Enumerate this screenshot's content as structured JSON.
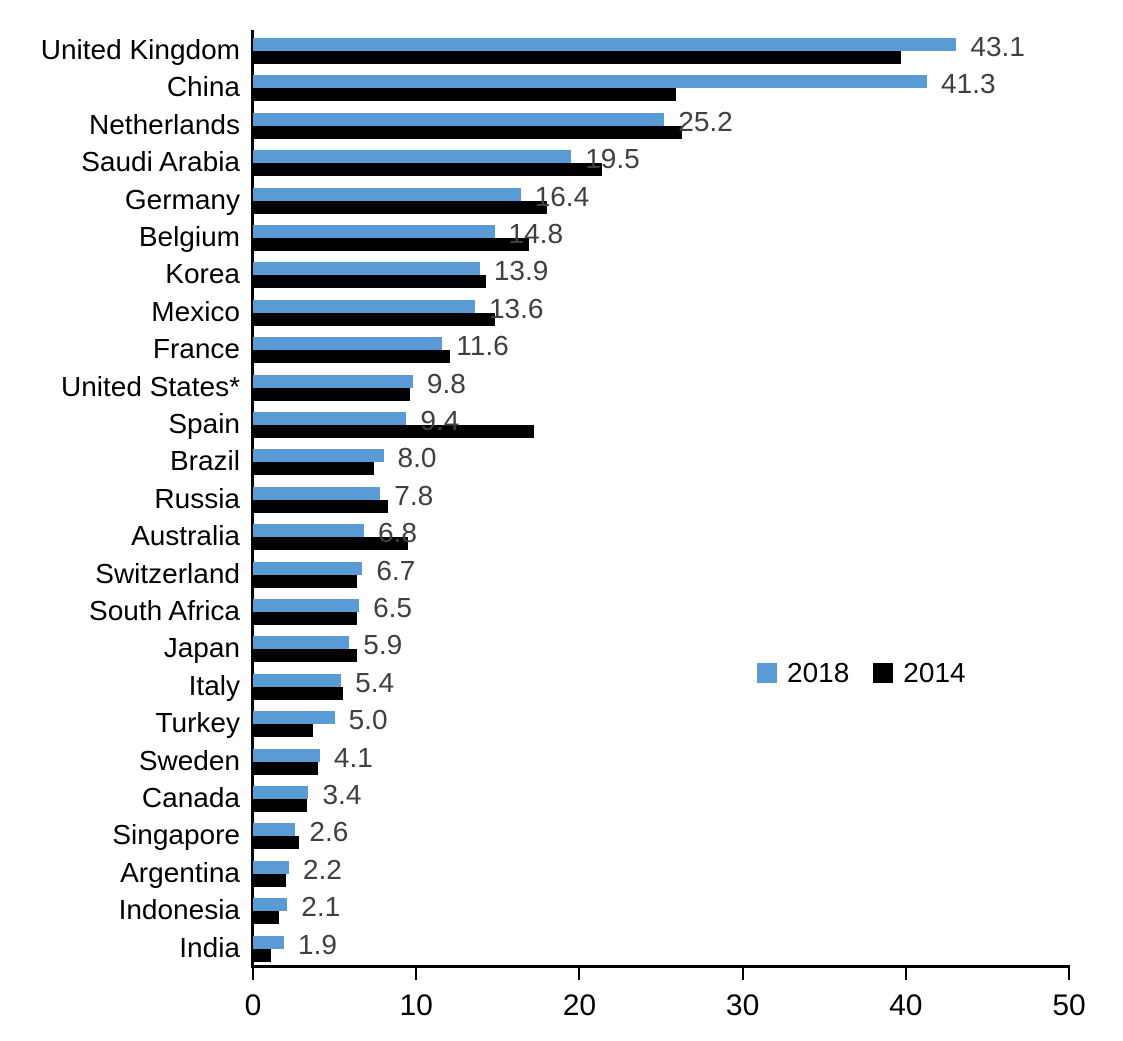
{
  "chart_data": {
    "type": "bar",
    "orientation": "horizontal",
    "title": "",
    "xlabel": "",
    "ylabel": "",
    "xlim": [
      0,
      50
    ],
    "xticks": [
      "0",
      "10",
      "20",
      "30",
      "40",
      "50"
    ],
    "grid": false,
    "legend_position": "middle-right",
    "categories": [
      "United Kingdom",
      "China",
      "Netherlands",
      "Saudi Arabia",
      "Germany",
      "Belgium",
      "Korea",
      "Mexico",
      "France",
      "United States*",
      "Spain",
      "Brazil",
      "Russia",
      "Australia",
      "Switzerland",
      "South Africa",
      "Japan",
      "Italy",
      "Turkey",
      "Sweden",
      "Canada",
      "Singapore",
      "Argentina",
      "Indonesia",
      "India"
    ],
    "series": [
      {
        "name": "2018",
        "color": "#5B9BD5",
        "values": [
          43.1,
          41.3,
          25.2,
          19.5,
          16.4,
          14.8,
          13.9,
          13.6,
          11.6,
          9.8,
          9.4,
          8.0,
          7.8,
          6.8,
          6.7,
          6.5,
          5.9,
          5.4,
          5.0,
          4.1,
          3.4,
          2.6,
          2.2,
          2.1,
          1.9
        ],
        "data_labels": [
          "43.1",
          "41.3",
          "25.2",
          "19.5",
          "16.4",
          "14.8",
          "13.9",
          "13.6",
          "11.6",
          "9.8",
          "9.4",
          "8.0",
          "7.8",
          "6.8",
          "6.7",
          "6.5",
          "5.9",
          "5.4",
          "5.0",
          "4.1",
          "3.4",
          "2.6",
          "2.2",
          "2.1",
          "1.9"
        ]
      },
      {
        "name": "2014",
        "color": "#000000",
        "values": [
          39.7,
          25.9,
          26.3,
          21.4,
          18.0,
          16.9,
          14.3,
          14.8,
          12.1,
          9.6,
          17.2,
          7.4,
          8.3,
          9.5,
          6.4,
          6.4,
          6.4,
          5.5,
          3.7,
          4.0,
          3.3,
          2.8,
          2.0,
          1.6,
          1.1
        ],
        "data_labels": []
      }
    ]
  },
  "colors": {
    "series_2018": "#5B9BD5",
    "series_2014": "#000000",
    "value_label": "#404040",
    "axis": "#000000"
  }
}
